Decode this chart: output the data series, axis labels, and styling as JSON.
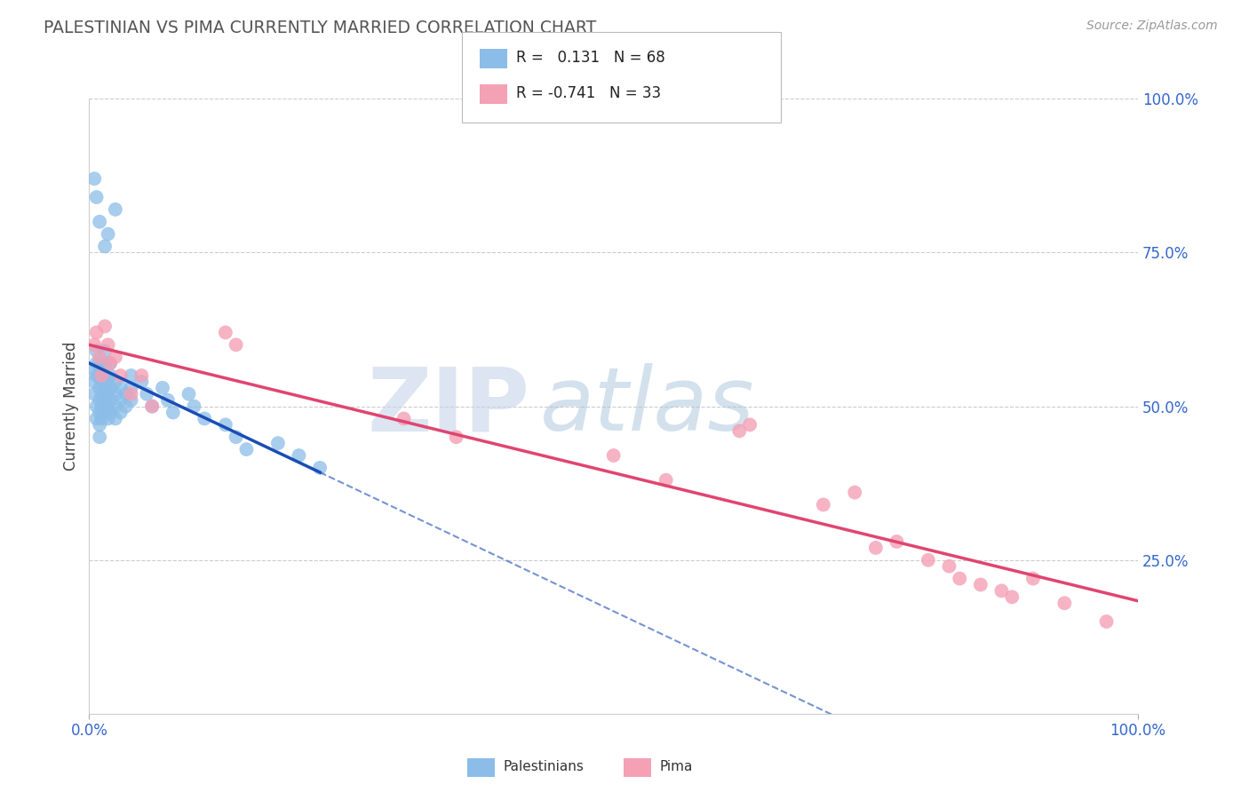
{
  "title": "PALESTINIAN VS PIMA CURRENTLY MARRIED CORRELATION CHART",
  "source": "Source: ZipAtlas.com",
  "ylabel": "Currently Married",
  "xlim": [
    0,
    1
  ],
  "ylim": [
    0,
    1
  ],
  "yticks_right": [
    0.25,
    0.5,
    0.75,
    1.0
  ],
  "ytick_right_labels": [
    "25.0%",
    "50.0%",
    "75.0%",
    "100.0%"
  ],
  "blue_R": 0.131,
  "blue_N": 68,
  "pink_R": -0.741,
  "pink_N": 33,
  "blue_color": "#8BBDE8",
  "pink_color": "#F4A0B5",
  "blue_line_color": "#1A4DB5",
  "pink_line_color": "#E04570",
  "blue_scatter_x": [
    0.005,
    0.005,
    0.005,
    0.007,
    0.007,
    0.007,
    0.007,
    0.007,
    0.01,
    0.01,
    0.01,
    0.01,
    0.01,
    0.01,
    0.01,
    0.012,
    0.012,
    0.012,
    0.012,
    0.012,
    0.015,
    0.015,
    0.015,
    0.015,
    0.015,
    0.015,
    0.018,
    0.018,
    0.018,
    0.018,
    0.02,
    0.02,
    0.02,
    0.02,
    0.02,
    0.025,
    0.025,
    0.025,
    0.025,
    0.03,
    0.03,
    0.03,
    0.035,
    0.035,
    0.04,
    0.04,
    0.04,
    0.05,
    0.055,
    0.06,
    0.07,
    0.075,
    0.08,
    0.095,
    0.1,
    0.11,
    0.13,
    0.14,
    0.15,
    0.18,
    0.2,
    0.22,
    0.025,
    0.018,
    0.015,
    0.005,
    0.007,
    0.01
  ],
  "blue_scatter_y": [
    0.52,
    0.54,
    0.56,
    0.5,
    0.48,
    0.55,
    0.57,
    0.59,
    0.51,
    0.53,
    0.55,
    0.57,
    0.49,
    0.47,
    0.45,
    0.52,
    0.54,
    0.56,
    0.5,
    0.48,
    0.53,
    0.55,
    0.51,
    0.49,
    0.57,
    0.59,
    0.52,
    0.54,
    0.5,
    0.48,
    0.53,
    0.51,
    0.55,
    0.49,
    0.57,
    0.52,
    0.54,
    0.5,
    0.48,
    0.53,
    0.51,
    0.49,
    0.52,
    0.5,
    0.53,
    0.51,
    0.55,
    0.54,
    0.52,
    0.5,
    0.53,
    0.51,
    0.49,
    0.52,
    0.5,
    0.48,
    0.47,
    0.45,
    0.43,
    0.44,
    0.42,
    0.4,
    0.82,
    0.78,
    0.76,
    0.87,
    0.84,
    0.8
  ],
  "pink_scatter_x": [
    0.005,
    0.007,
    0.01,
    0.012,
    0.015,
    0.018,
    0.02,
    0.025,
    0.03,
    0.04,
    0.05,
    0.06,
    0.13,
    0.14,
    0.3,
    0.35,
    0.5,
    0.55,
    0.62,
    0.63,
    0.7,
    0.73,
    0.75,
    0.77,
    0.8,
    0.82,
    0.83,
    0.85,
    0.87,
    0.88,
    0.9,
    0.93,
    0.97
  ],
  "pink_scatter_y": [
    0.6,
    0.62,
    0.58,
    0.55,
    0.63,
    0.6,
    0.57,
    0.58,
    0.55,
    0.52,
    0.55,
    0.5,
    0.62,
    0.6,
    0.48,
    0.45,
    0.42,
    0.38,
    0.46,
    0.47,
    0.34,
    0.36,
    0.27,
    0.28,
    0.25,
    0.24,
    0.22,
    0.21,
    0.2,
    0.19,
    0.22,
    0.18,
    0.15
  ],
  "watermark_zip": "ZIP",
  "watermark_atlas": "atlas",
  "grid_color": "#CCCCCC",
  "background_color": "#FFFFFF"
}
